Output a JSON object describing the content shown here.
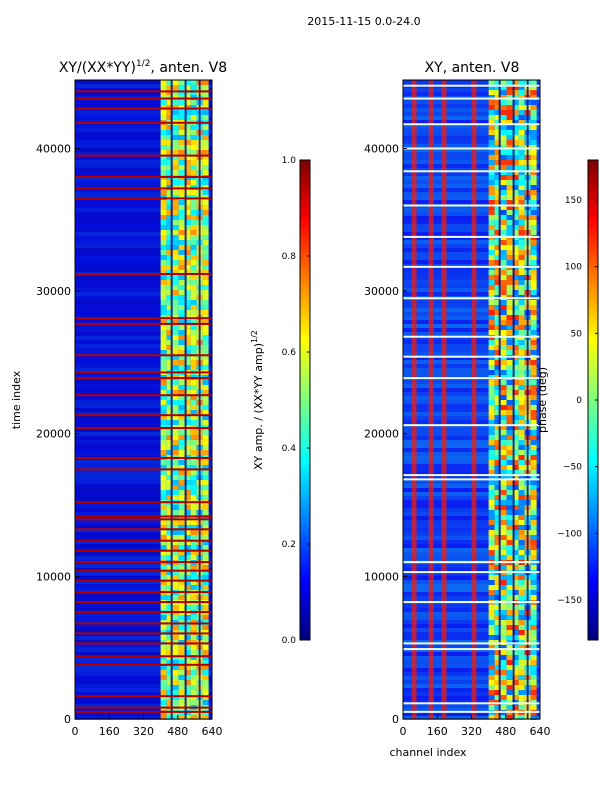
{
  "figure": {
    "suptitle": "2015-11-15 0.0-24.0"
  },
  "chart_data": [
    {
      "type": "heatmap",
      "title": "XY/(XX*YY)",
      "title_exponent": "1/2",
      "title_suffix": ", anten. V8",
      "xlabel": "",
      "ylabel": "time index",
      "x_ticks": [
        0,
        160,
        320,
        480,
        640
      ],
      "y_ticks": [
        0,
        10000,
        20000,
        30000,
        40000
      ],
      "xlim": [
        0,
        640
      ],
      "ylim": [
        0,
        44800
      ],
      "colorbar": {
        "label": "XY amp. / (XX*YY amp)",
        "label_exponent": "1/2",
        "range": [
          0.0,
          1.0
        ],
        "ticks": [
          "0.0",
          "0.2",
          "0.4",
          "0.6",
          "0.8",
          "1.0"
        ]
      },
      "colormap": "jet",
      "dominant_value": 0.1,
      "bright_channel_range": [
        400,
        620
      ],
      "flagged_time_rows": [
        500,
        800,
        1600,
        3800,
        4400,
        5300,
        6000,
        6700,
        7500,
        8200,
        8900,
        9700,
        10400,
        11000,
        11800,
        12500,
        13300,
        14000,
        14200,
        15200,
        17500,
        18300,
        20400,
        21300,
        22700,
        23900,
        24300,
        25500,
        27700,
        28100,
        31200,
        36500,
        37200,
        38000,
        39500,
        41800,
        42800,
        43500,
        44000
      ]
    },
    {
      "type": "heatmap",
      "title": "XY, anten. V8",
      "xlabel": "channel index",
      "ylabel": "",
      "x_ticks": [
        0,
        160,
        320,
        480,
        640
      ],
      "y_ticks": [
        0,
        10000,
        20000,
        30000,
        40000
      ],
      "xlim": [
        0,
        640
      ],
      "ylim": [
        0,
        44800
      ],
      "colorbar": {
        "label": "phase (deg)",
        "range": [
          -180,
          180
        ],
        "ticks": [
          "−150",
          "−100",
          "−50",
          "0",
          "50",
          "100",
          "150"
        ],
        "tick_values": [
          -150,
          -100,
          -50,
          0,
          50,
          100,
          150
        ]
      },
      "colormap": "jet",
      "dominant_value": -130,
      "bright_channel_range": [
        400,
        620
      ],
      "vertical_stripe_channels": [
        40,
        120,
        180,
        320
      ],
      "flagged_time_rows": [
        500,
        1100,
        4900,
        5300,
        8200,
        10300,
        11000,
        16800,
        17100,
        20600,
        23900,
        25400,
        26800,
        29500,
        31700,
        33800,
        36000,
        38400,
        40000,
        41700,
        43500,
        44400
      ]
    }
  ]
}
